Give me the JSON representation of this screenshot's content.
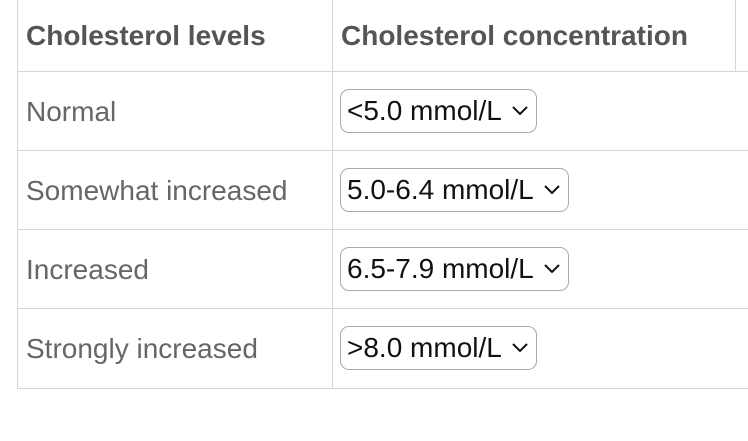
{
  "table": {
    "header": [
      "Cholesterol levels",
      "Cholesterol concentration"
    ],
    "rows": [
      [
        "Normal",
        "<5.0 mmol/L"
      ],
      [
        "Somewhat increased",
        "5.0-6.4 mmol/L"
      ],
      [
        "Increased",
        "6.5-7.9 mmol/L"
      ],
      [
        "Strongly increased",
        ">8.0 mmol/L"
      ]
    ]
  }
}
